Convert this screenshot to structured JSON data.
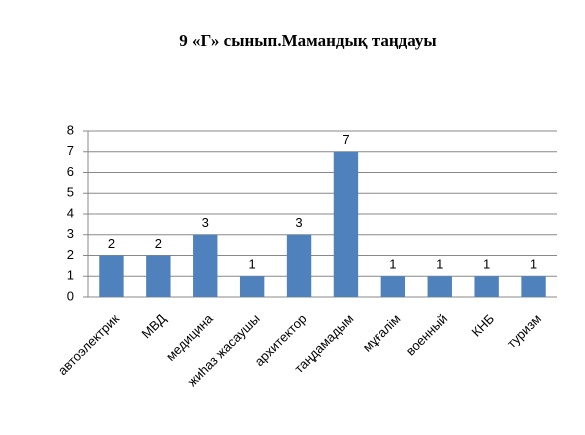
{
  "chart_data": {
    "type": "bar",
    "title": "9 «Г» сынып.Мамандық таңдауы",
    "categories": [
      "автоэлектрик",
      "МВД",
      "медицина",
      "жиһаз жасаушы",
      "архитектор",
      "таңдамадым",
      "мұғалім",
      "военный",
      "КНБ",
      "туризм"
    ],
    "values": [
      2,
      2,
      3,
      1,
      3,
      7,
      1,
      1,
      1,
      1
    ],
    "color": "#4f81bd",
    "ylim": [
      0,
      8
    ],
    "yticks": [
      0,
      1,
      2,
      3,
      4,
      5,
      6,
      7,
      8
    ],
    "grid": true
  }
}
